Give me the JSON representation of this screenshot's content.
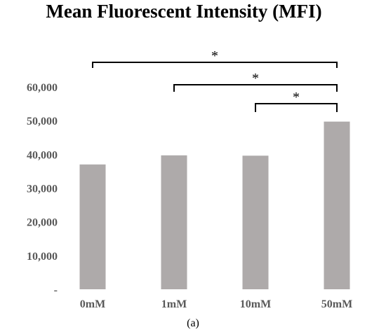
{
  "chart_data": {
    "type": "bar",
    "title": "Mean Fluorescent Intensity (MFI)",
    "categories": [
      "0mM",
      "1mM",
      "10mM",
      "50mM"
    ],
    "values": [
      37000,
      39700,
      39600,
      49700
    ],
    "ylim": [
      0,
      60000
    ],
    "yticks": [
      0,
      10000,
      20000,
      30000,
      40000,
      50000,
      60000
    ],
    "ytick_labels": [
      "-",
      "10,000",
      "20,000",
      "30,000",
      "40,000",
      "50,000",
      "60,000"
    ],
    "xlabel": "",
    "ylabel": "",
    "grid": false,
    "bar_color": "#aeaaaa",
    "significance": [
      {
        "from": "0mM",
        "to": "50mM",
        "label": "*"
      },
      {
        "from": "1mM",
        "to": "50mM",
        "label": "*"
      },
      {
        "from": "10mM",
        "to": "50mM",
        "label": "*"
      }
    ]
  },
  "caption": "(a)"
}
